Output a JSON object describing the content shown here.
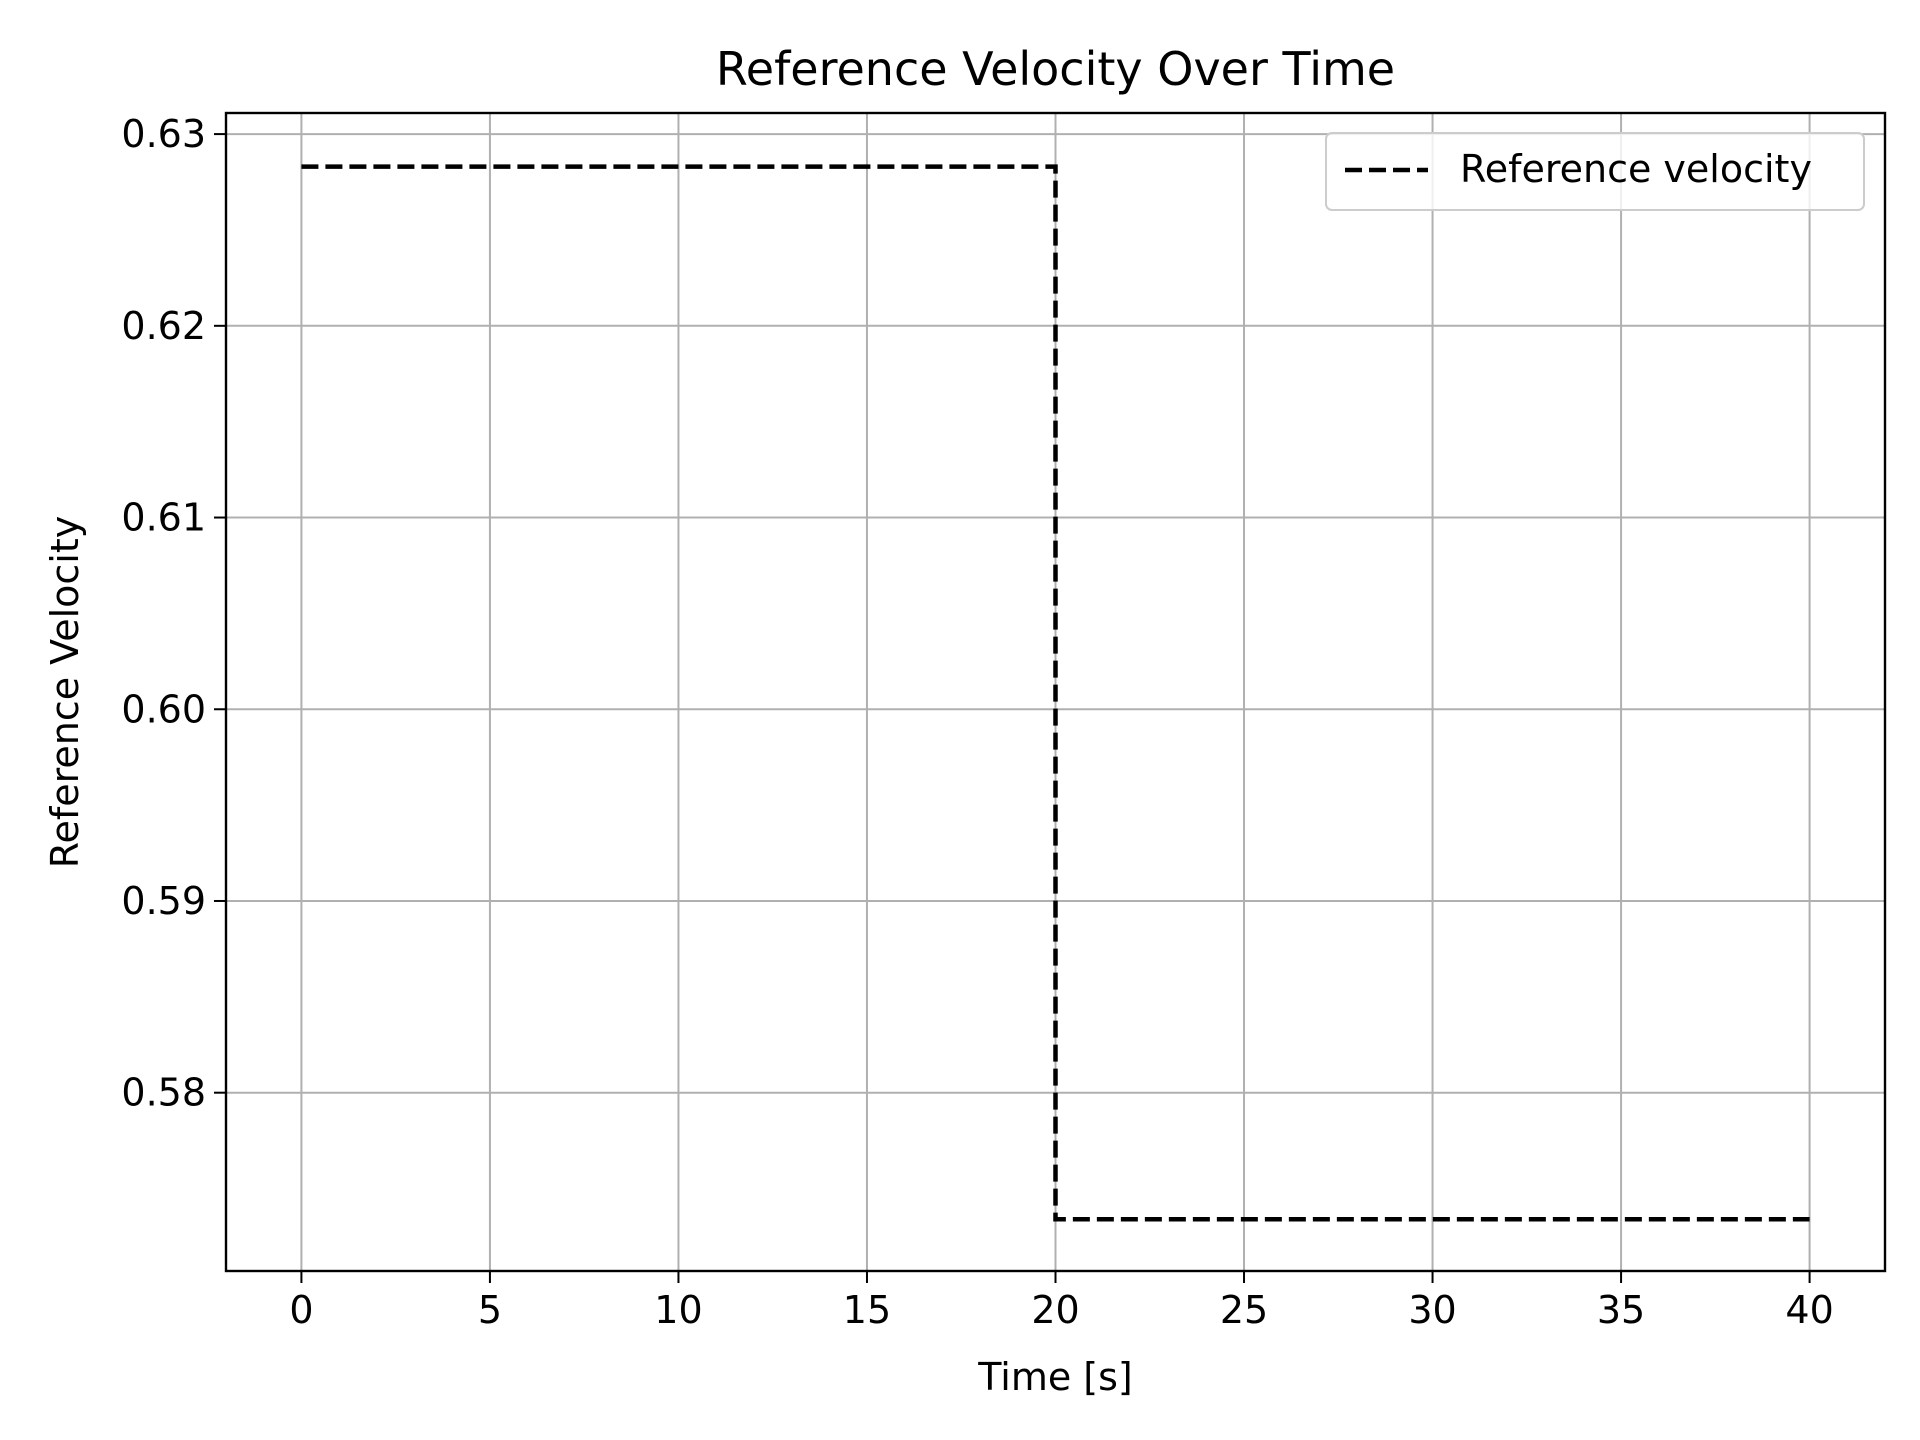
{
  "chart_data": {
    "type": "line",
    "title": "Reference Velocity Over Time",
    "xlabel": "Time [s]",
    "ylabel": "Reference Velocity",
    "xlim": [
      -2,
      42
    ],
    "ylim": [
      0.5707,
      0.6311
    ],
    "x_ticks": [
      0,
      5,
      10,
      15,
      20,
      25,
      30,
      35,
      40
    ],
    "y_ticks": [
      0.58,
      0.59,
      0.6,
      0.61,
      0.62,
      0.63
    ],
    "x_tick_labels": [
      "0",
      "5",
      "10",
      "15",
      "20",
      "25",
      "30",
      "35",
      "40"
    ],
    "y_tick_labels": [
      "0.58",
      "0.59",
      "0.60",
      "0.61",
      "0.62",
      "0.63"
    ],
    "grid": true,
    "legend_position": "top-right",
    "series": [
      {
        "name": "Reference velocity",
        "color": "#000000",
        "style": "dashed",
        "x": [
          0,
          20,
          20,
          40
        ],
        "y": [
          0.6283,
          0.6283,
          0.5734,
          0.5734
        ]
      }
    ]
  }
}
